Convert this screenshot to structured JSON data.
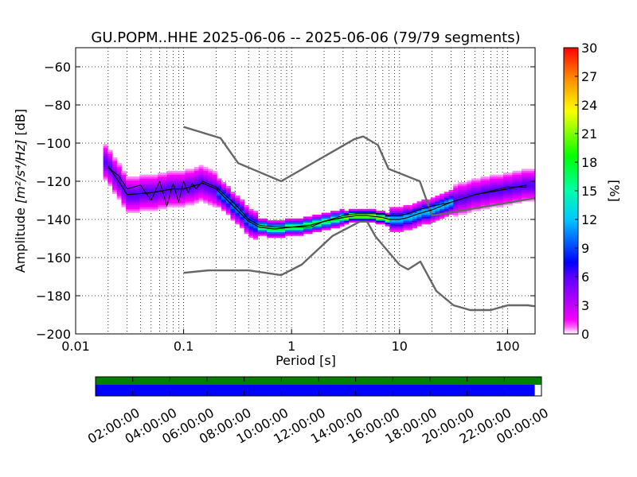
{
  "chart_data": [
    {
      "type": "heatmap",
      "title": "GU.POPM..HHE   2025-06-06 -- 2025-06-06  (79/79 segments)",
      "xlabel": "Period [s]",
      "ylabel": "Amplitude [m²/s⁴/Hz] [dB]",
      "ylabel_parts": {
        "pre": "Amplitude ",
        "math": "[m²/s⁴/Hz]",
        "post": " [dB]"
      },
      "x_scale": "log",
      "xlim": [
        0.01,
        180
      ],
      "ylim": [
        -200,
        -50
      ],
      "x_ticks": [
        0.01,
        0.1,
        1,
        10,
        100
      ],
      "x_tick_labels": [
        "0.01",
        "0.1",
        "1",
        "10",
        "100"
      ],
      "y_ticks": [
        -200,
        -180,
        -160,
        -140,
        -120,
        -100,
        -80,
        -60
      ],
      "y_tick_labels": [
        "−200",
        "−180",
        "−160",
        "−140",
        "−120",
        "−100",
        "−80",
        "−60"
      ],
      "grid": true,
      "colorbar": {
        "label": "[%]",
        "range": [
          0,
          30
        ],
        "ticks": [
          0,
          3,
          6,
          9,
          12,
          15,
          18,
          21,
          24,
          27,
          30
        ],
        "tick_labels": [
          "0",
          "3",
          "6",
          "9",
          "12",
          "15",
          "18",
          "21",
          "24",
          "27",
          "30"
        ]
      },
      "series": [
        {
          "role": "high-noise-model",
          "color": "#666666",
          "x": [
            0.1,
            0.22,
            0.32,
            0.8,
            3.8,
            4.6,
            6.3,
            7.9,
            15.4,
            20,
            354.8
          ],
          "y": [
            -91.5,
            -97.4,
            -110.5,
            -120,
            -98,
            -96.5,
            -101,
            -113.5,
            -120,
            -138,
            -126
          ]
        },
        {
          "role": "low-noise-model",
          "color": "#666666",
          "x": [
            0.1,
            0.17,
            0.4,
            0.8,
            1.24,
            2.4,
            4.3,
            5,
            6,
            10,
            12,
            15.6,
            21.9,
            31.6,
            45,
            70,
            101,
            154,
            178
          ],
          "y": [
            -168,
            -166.7,
            -166.7,
            -169.2,
            -163.7,
            -148.6,
            -141.1,
            -141.1,
            -149,
            -163.8,
            -166.2,
            -162.1,
            -177.5,
            -185,
            -187.5,
            -187.5,
            -185,
            -185,
            -185.5
          ]
        },
        {
          "role": "mean-psd",
          "color": "#000000",
          "x": [
            0.02,
            0.025,
            0.03,
            0.04,
            0.05,
            0.06,
            0.07,
            0.08,
            0.09,
            0.1,
            0.11,
            0.12,
            0.13,
            0.15,
            0.2,
            0.3,
            0.4,
            0.5,
            0.7,
            1,
            1.5,
            2,
            3,
            4,
            5,
            6,
            7,
            8,
            10,
            12,
            15,
            20,
            30,
            50,
            100,
            150
          ],
          "y": [
            -113,
            -117,
            -124,
            -122,
            -130,
            -120,
            -133,
            -121,
            -131,
            -120,
            -126,
            -121,
            -124,
            -120,
            -123,
            -132,
            -140,
            -143,
            -144,
            -144,
            -144,
            -141,
            -138,
            -137,
            -137,
            -137,
            -137,
            -138,
            -138,
            -137,
            -135,
            -133,
            -131,
            -127,
            -123,
            -123
          ]
        },
        {
          "role": "mode-psd",
          "color": "#000000",
          "x": [
            0.02,
            0.025,
            0.03,
            0.05,
            0.08,
            0.1,
            0.15,
            0.2,
            0.3,
            0.4,
            0.5,
            0.7,
            1,
            1.5,
            2,
            3,
            4,
            5,
            7,
            8,
            10,
            12,
            15,
            20,
            30,
            50,
            100,
            150
          ],
          "y": [
            -112,
            -120,
            -127,
            -126,
            -124,
            -124,
            -121,
            -124,
            -134,
            -141,
            -144,
            -145,
            -144,
            -143,
            -141,
            -139,
            -138,
            -138,
            -139,
            -140,
            -140,
            -139,
            -137,
            -135,
            -131,
            -127,
            -124,
            -122
          ]
        }
      ],
      "histogram_bands": [
        {
          "x_from": 0.018,
          "x_to": 0.2,
          "y_center": -122,
          "spread": 9,
          "percent": 6
        },
        {
          "x_from": 0.2,
          "x_to": 0.5,
          "y_center": -135,
          "spread": 7,
          "percent": 10
        },
        {
          "x_from": 0.5,
          "x_to": 3,
          "y_center": -143,
          "spread": 4,
          "percent": 18
        },
        {
          "x_from": 3,
          "x_to": 8,
          "y_center": -138,
          "spread": 3,
          "percent": 22
        },
        {
          "x_from": 8,
          "x_to": 30,
          "y_center": -136,
          "spread": 6,
          "percent": 12
        },
        {
          "x_from": 30,
          "x_to": 180,
          "y_center": -128,
          "spread": 8,
          "percent": 6
        }
      ]
    },
    {
      "type": "timeline",
      "tick_labels": [
        "02:00:00",
        "04:00:00",
        "06:00:00",
        "08:00:00",
        "10:00:00",
        "12:00:00",
        "14:00:00",
        "16:00:00",
        "18:00:00",
        "20:00:00",
        "22:00:00",
        "00:00:00"
      ],
      "bars": [
        {
          "role": "data-availability",
          "color": "#008000",
          "coverage": [
            0.0,
            1.0
          ]
        },
        {
          "role": "psd-segments",
          "color": "#0000ff",
          "coverage": [
            0.0,
            0.985
          ]
        }
      ]
    }
  ]
}
